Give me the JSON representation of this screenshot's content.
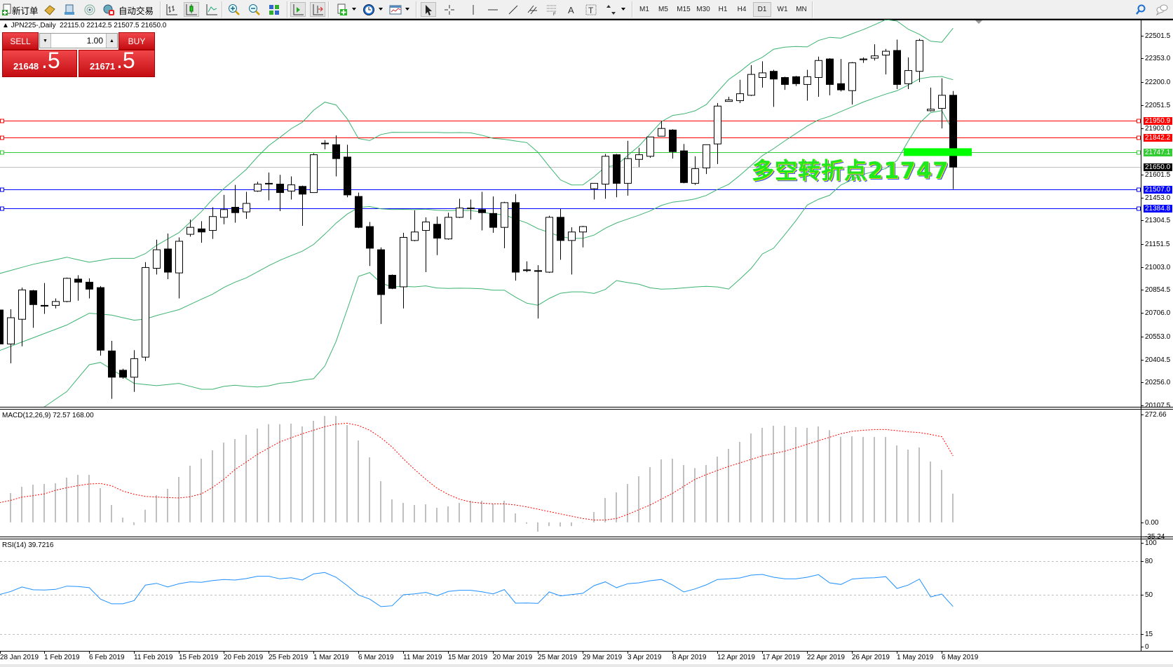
{
  "toolbar": {
    "new_order_label": "新订单",
    "auto_trading_label": "自动交易",
    "icons": [
      "new-order-icon",
      "market-watch-icon",
      "data-window-icon",
      "signals-icon",
      "auto-trading-icon",
      "bar-chart-icon",
      "candlestick-icon",
      "line-chart-icon",
      "zoom-in-icon",
      "zoom-out-icon",
      "tile-windows-icon",
      "auto-scroll-icon",
      "chart-shift-icon",
      "indicators-icon",
      "periods-icon",
      "templates-icon",
      "cursor-icon",
      "crosshair-icon",
      "vertical-line-icon",
      "horizontal-line-icon",
      "trendline-icon",
      "channel-icon",
      "fibonacci-icon",
      "text-icon",
      "text-label-icon",
      "arrows-icon",
      "search-icon",
      "chat-icon"
    ],
    "timeframes": [
      "M1",
      "M5",
      "M15",
      "M30",
      "H1",
      "H4",
      "D1",
      "W1",
      "MN"
    ],
    "active_timeframe": "D1"
  },
  "chart_header": {
    "symbol": "▲ JPN225-,Daily",
    "ohlc": "22115.0 22142.5 21507.5 21650.0"
  },
  "one_click": {
    "sell_label": "SELL",
    "buy_label": "BUY",
    "lot": "1.00",
    "sell_price_main": "21648",
    "sell_price_frac": ".5",
    "buy_price_main": "21671",
    "buy_price_frac": ".5"
  },
  "annotation": {
    "text": "多空转折点21747",
    "price": 21747,
    "color": "#00ff00"
  },
  "chart_data": {
    "type": "candlestick",
    "symbol": "JPN225-",
    "timeframe": "Daily",
    "price_ticks": [
      "22501.5",
      "22353.0",
      "22200.0",
      "22051.5",
      "21903.0",
      "21601.5",
      "21453.0",
      "21304.5",
      "21151.5",
      "21003.0",
      "20854.5",
      "20706.0",
      "20553.0",
      "20404.5",
      "20256.0",
      "20107.5"
    ],
    "ylim": [
      20107.5,
      22501.5
    ],
    "date_labels": [
      "28 Jan 2019",
      "1 Feb 2019",
      "6 Feb 2019",
      "11 Feb 2019",
      "15 Feb 2019",
      "20 Feb 2019",
      "25 Feb 2019",
      "1 Mar 2019",
      "6 Mar 2019",
      "11 Mar 2019",
      "15 Mar 2019",
      "20 Mar 2019",
      "25 Mar 2019",
      "29 Mar 2019",
      "3 Apr 2019",
      "8 Apr 2019",
      "12 Apr 2019",
      "17 Apr 2019",
      "22 Apr 2019",
      "26 Apr 2019",
      "1 May 2019",
      "6 May 2019"
    ],
    "date_label_every_bars": 4,
    "ohlc": [
      [
        20725,
        20750,
        20475,
        20505
      ],
      [
        20505,
        20730,
        20380,
        20675
      ],
      [
        20665,
        20870,
        20490,
        20855
      ],
      [
        20850,
        20855,
        20610,
        20760
      ],
      [
        20755,
        20900,
        20700,
        20750
      ],
      [
        20755,
        20800,
        20735,
        20780
      ],
      [
        20780,
        20935,
        20775,
        20930
      ],
      [
        20925,
        20950,
        20785,
        20905
      ],
      [
        20905,
        20930,
        20800,
        20860
      ],
      [
        20870,
        20880,
        20430,
        20465
      ],
      [
        20460,
        20525,
        20150,
        20290
      ],
      [
        20335,
        20345,
        20280,
        20290
      ],
      [
        20290,
        20465,
        20195,
        20410
      ],
      [
        20420,
        21035,
        20395,
        21000
      ],
      [
        20995,
        21180,
        20955,
        21115
      ],
      [
        21120,
        21220,
        20925,
        20970
      ],
      [
        20965,
        21195,
        20800,
        21170
      ],
      [
        21215,
        21310,
        21200,
        21260
      ],
      [
        21250,
        21300,
        21160,
        21230
      ],
      [
        21240,
        21390,
        21185,
        21330
      ],
      [
        21325,
        21470,
        21280,
        21375
      ],
      [
        21390,
        21535,
        21290,
        21355
      ],
      [
        21360,
        21490,
        21315,
        21415
      ],
      [
        21495,
        21555,
        21490,
        21540
      ],
      [
        21545,
        21615,
        21435,
        21545
      ],
      [
        21540,
        21600,
        21365,
        21485
      ],
      [
        21495,
        21590,
        21440,
        21535
      ],
      [
        21525,
        21530,
        21270,
        21475
      ],
      [
        21485,
        21740,
        21485,
        21730
      ],
      [
        21805,
        21825,
        21765,
        21805
      ],
      [
        21795,
        21855,
        21590,
        21705
      ],
      [
        21715,
        21795,
        21455,
        21470
      ],
      [
        21460,
        21485,
        21255,
        21260
      ],
      [
        21265,
        21295,
        21010,
        21125
      ],
      [
        21115,
        21130,
        20635,
        20825
      ],
      [
        20950,
        20955,
        20860,
        20865
      ],
      [
        20875,
        21225,
        20735,
        21195
      ],
      [
        21175,
        21370,
        21170,
        21230
      ],
      [
        21240,
        21325,
        20970,
        21295
      ],
      [
        21280,
        21330,
        21080,
        21190
      ],
      [
        21185,
        21355,
        21180,
        21325
      ],
      [
        21325,
        21445,
        21320,
        21385
      ],
      [
        21385,
        21440,
        21310,
        21385
      ],
      [
        21375,
        21490,
        21240,
        21355
      ],
      [
        21350,
        21460,
        21225,
        21260
      ],
      [
        21260,
        21425,
        21125,
        21420
      ],
      [
        21420,
        21475,
        20915,
        20970
      ],
      [
        20985,
        21040,
        20970,
        20980
      ],
      [
        20980,
        21015,
        20670,
        20975
      ],
      [
        20970,
        21335,
        20965,
        21325
      ],
      [
        21325,
        21380,
        21050,
        21175
      ],
      [
        21175,
        21260,
        20955,
        21230
      ],
      [
        21230,
        21270,
        21130,
        21265
      ],
      [
        21510,
        21545,
        21440,
        21545
      ],
      [
        21540,
        21735,
        21445,
        21720
      ],
      [
        21730,
        21735,
        21455,
        21545
      ],
      [
        21545,
        21820,
        21465,
        21705
      ],
      [
        21700,
        21775,
        21650,
        21730
      ],
      [
        21720,
        21845,
        21710,
        21845
      ],
      [
        21850,
        21950,
        21850,
        21900
      ],
      [
        21890,
        21895,
        21705,
        21750
      ],
      [
        21755,
        21800,
        21545,
        21550
      ],
      [
        21545,
        21720,
        21535,
        21640
      ],
      [
        21645,
        21795,
        21605,
        21795
      ],
      [
        21800,
        22065,
        21670,
        22045
      ],
      [
        22075,
        22105,
        22075,
        22085
      ],
      [
        22080,
        22215,
        22065,
        22125
      ],
      [
        22115,
        22310,
        22110,
        22250
      ],
      [
        22230,
        22335,
        22165,
        22260
      ],
      [
        22270,
        22280,
        22040,
        22220
      ],
      [
        22230,
        22235,
        22150,
        22185
      ],
      [
        22235,
        22240,
        22175,
        22190
      ],
      [
        22185,
        22280,
        22080,
        22235
      ],
      [
        22230,
        22365,
        22105,
        22340
      ],
      [
        22350,
        22355,
        22115,
        22185
      ],
      [
        22190,
        22350,
        22140,
        22150
      ],
      [
        22145,
        22330,
        22055,
        22325
      ],
      [
        22345,
        22360,
        22325,
        22350
      ],
      [
        22355,
        22445,
        22340,
        22370
      ],
      [
        22375,
        22415,
        22250,
        22400
      ],
      [
        22405,
        22475,
        22155,
        22185
      ],
      [
        22190,
        22360,
        22155,
        22275
      ],
      [
        22270,
        22480,
        22200,
        22470
      ],
      [
        22015,
        22165,
        22010,
        22025
      ],
      [
        22030,
        22225,
        21900,
        22115
      ],
      [
        22115,
        22142.5,
        21507.5,
        21650
      ]
    ],
    "bollinger": {
      "period": 20,
      "deviation": 2,
      "color": "#3cb371",
      "upper_first_bars": [
        20961,
        20981,
        21001,
        21021,
        21036,
        21051,
        21067,
        21050,
        21034,
        21046,
        21059,
        21059,
        21059,
        21090,
        21143,
        21185,
        21226,
        21294,
        21362
      ],
      "middle_first_bars": [
        20462,
        20490,
        20518,
        20545,
        20573,
        20600,
        20628,
        20666,
        20704,
        20698,
        20692,
        20675,
        20659,
        20666,
        20689,
        20708,
        20727,
        20761,
        20795
      ],
      "lower_first_bars": [
        19960,
        19990,
        20030,
        20065,
        20098,
        20148,
        20197,
        20284,
        20371,
        20386,
        20341,
        20295,
        20250,
        20243,
        20235,
        20243,
        20250,
        20231,
        20212
      ]
    },
    "levels": [
      {
        "price": 21950.9,
        "label": "21950.9",
        "color": "#ff0000"
      },
      {
        "price": 21842.2,
        "label": "21842.2",
        "color": "#ff0000"
      },
      {
        "price": 21747.1,
        "label": "21747.1",
        "color": "#32cd32"
      },
      {
        "price": 21650.0,
        "label": "21650.0",
        "color": "#000000",
        "line_color": "#c0c0c0",
        "current": true
      },
      {
        "price": 21507.0,
        "label": "21507.0",
        "color": "#0000ff"
      },
      {
        "price": 21384.8,
        "label": "21384.8",
        "color": "#0000ff"
      }
    ],
    "macd": {
      "label": "MACD(12,26,9) 72.57 168.00",
      "axis_labels": [
        "272.66",
        "0.00",
        "-35.24"
      ],
      "axis_values": [
        272.66,
        0,
        -35.24
      ],
      "histogram_color": "#c0c0c0",
      "signal_color": "#ff0000",
      "histogram": [
        50,
        73.9,
        89.9,
        95.2,
        97,
        98.7,
        112.9,
        120,
        120,
        86.3,
        43.8,
        11.8,
        -7.1,
        31.9,
        68.6,
        84.6,
        114.7,
        143.1,
        160.8,
        182.1,
        201.6,
        210.5,
        221.1,
        237.1,
        248.3,
        248.3,
        249.5,
        242.4,
        256.6,
        269,
        269,
        246,
        207,
        164.4,
        104.1,
        57.9,
        49.1,
        43.8,
        45.5,
        36.7,
        40.2,
        49.1,
        54.4,
        54.4,
        46.7,
        54.4,
        22.5,
        -3.5,
        -23.7,
        -9.5,
        -10.6,
        -9.5,
        -1.2,
        26,
        61.5,
        75.7,
        97,
        116.5,
        139.5,
        159.1,
        160.8,
        144.9,
        137.2,
        144.9,
        166.2,
        185.7,
        203.4,
        224.7,
        238.9,
        244.2,
        244.2,
        240.7,
        238.9,
        242.4,
        233,
        216.4,
        217.6,
        215.8,
        215.8,
        215.8,
        194.5,
        183.9,
        189.2,
        153.7,
        132.5,
        72.57
      ],
      "signal": [
        49.7,
        55.6,
        63.9,
        67.4,
        72.1,
        81,
        87.5,
        92.8,
        97,
        98.2,
        92.2,
        79.2,
        71,
        65.6,
        63.9,
        62.7,
        61.5,
        64.5,
        72.1,
        88.1,
        108.8,
        133.6,
        152.6,
        172,
        188,
        203.4,
        214,
        224.1,
        233,
        241.8,
        248.3,
        250.7,
        244.8,
        233,
        214,
        190.4,
        160.8,
        133.6,
        108.8,
        86.3,
        70.4,
        58.5,
        51.4,
        48.5,
        46.7,
        46.7,
        43.8,
        39,
        33.1,
        27.2,
        21.3,
        15.4,
        9.5,
        5.9,
        5.9,
        9.5,
        20.1,
        31.9,
        43.8,
        58.5,
        73.3,
        91.1,
        108.8,
        120.6,
        131.3,
        141.3,
        150.2,
        159.1,
        168,
        173.8,
        179.8,
        188.6,
        197.5,
        206.4,
        215.2,
        224.1,
        230,
        233,
        234.7,
        234.7,
        231.8,
        228.8,
        227.1,
        222.3,
        216.4,
        168
      ]
    },
    "rsi": {
      "label": "RSI(14) 39.7216",
      "axis_labels": [
        "100",
        "80",
        "50",
        "15",
        "0"
      ],
      "axis_values": [
        100,
        80,
        50,
        15,
        0
      ],
      "levels": [
        80,
        50,
        15
      ],
      "color": "#1e90ff",
      "values": [
        50.4,
        53.1,
        57.1,
        54.6,
        54.4,
        55,
        57.9,
        57.5,
        56.5,
        46.3,
        42.1,
        42.1,
        45,
        58.8,
        60.4,
        57.1,
        60,
        61.7,
        61.3,
        62.9,
        63.8,
        63.3,
        64.6,
        66.7,
        66.7,
        64.4,
        65.4,
        63.3,
        68.8,
        70,
        65.8,
        58.3,
        50,
        46.3,
        39.6,
        40.4,
        50.2,
        51,
        52.3,
        49.4,
        53.1,
        54.2,
        54.2,
        52.9,
        51,
        54.8,
        42.7,
        42.9,
        42.5,
        52.7,
        49.2,
        50.4,
        51.5,
        58.3,
        61.7,
        56.5,
        60,
        60.8,
        62.7,
        63.8,
        58.8,
        52.7,
        55.4,
        59,
        63.8,
        64.4,
        65.2,
        67.7,
        68.3,
        65.8,
        64.4,
        64.4,
        65.8,
        68.1,
        60.8,
        59.4,
        64.2,
        65,
        65.4,
        66.3,
        55.8,
        58.8,
        64.2,
        48.3,
        50.8,
        39.7216
      ]
    }
  }
}
